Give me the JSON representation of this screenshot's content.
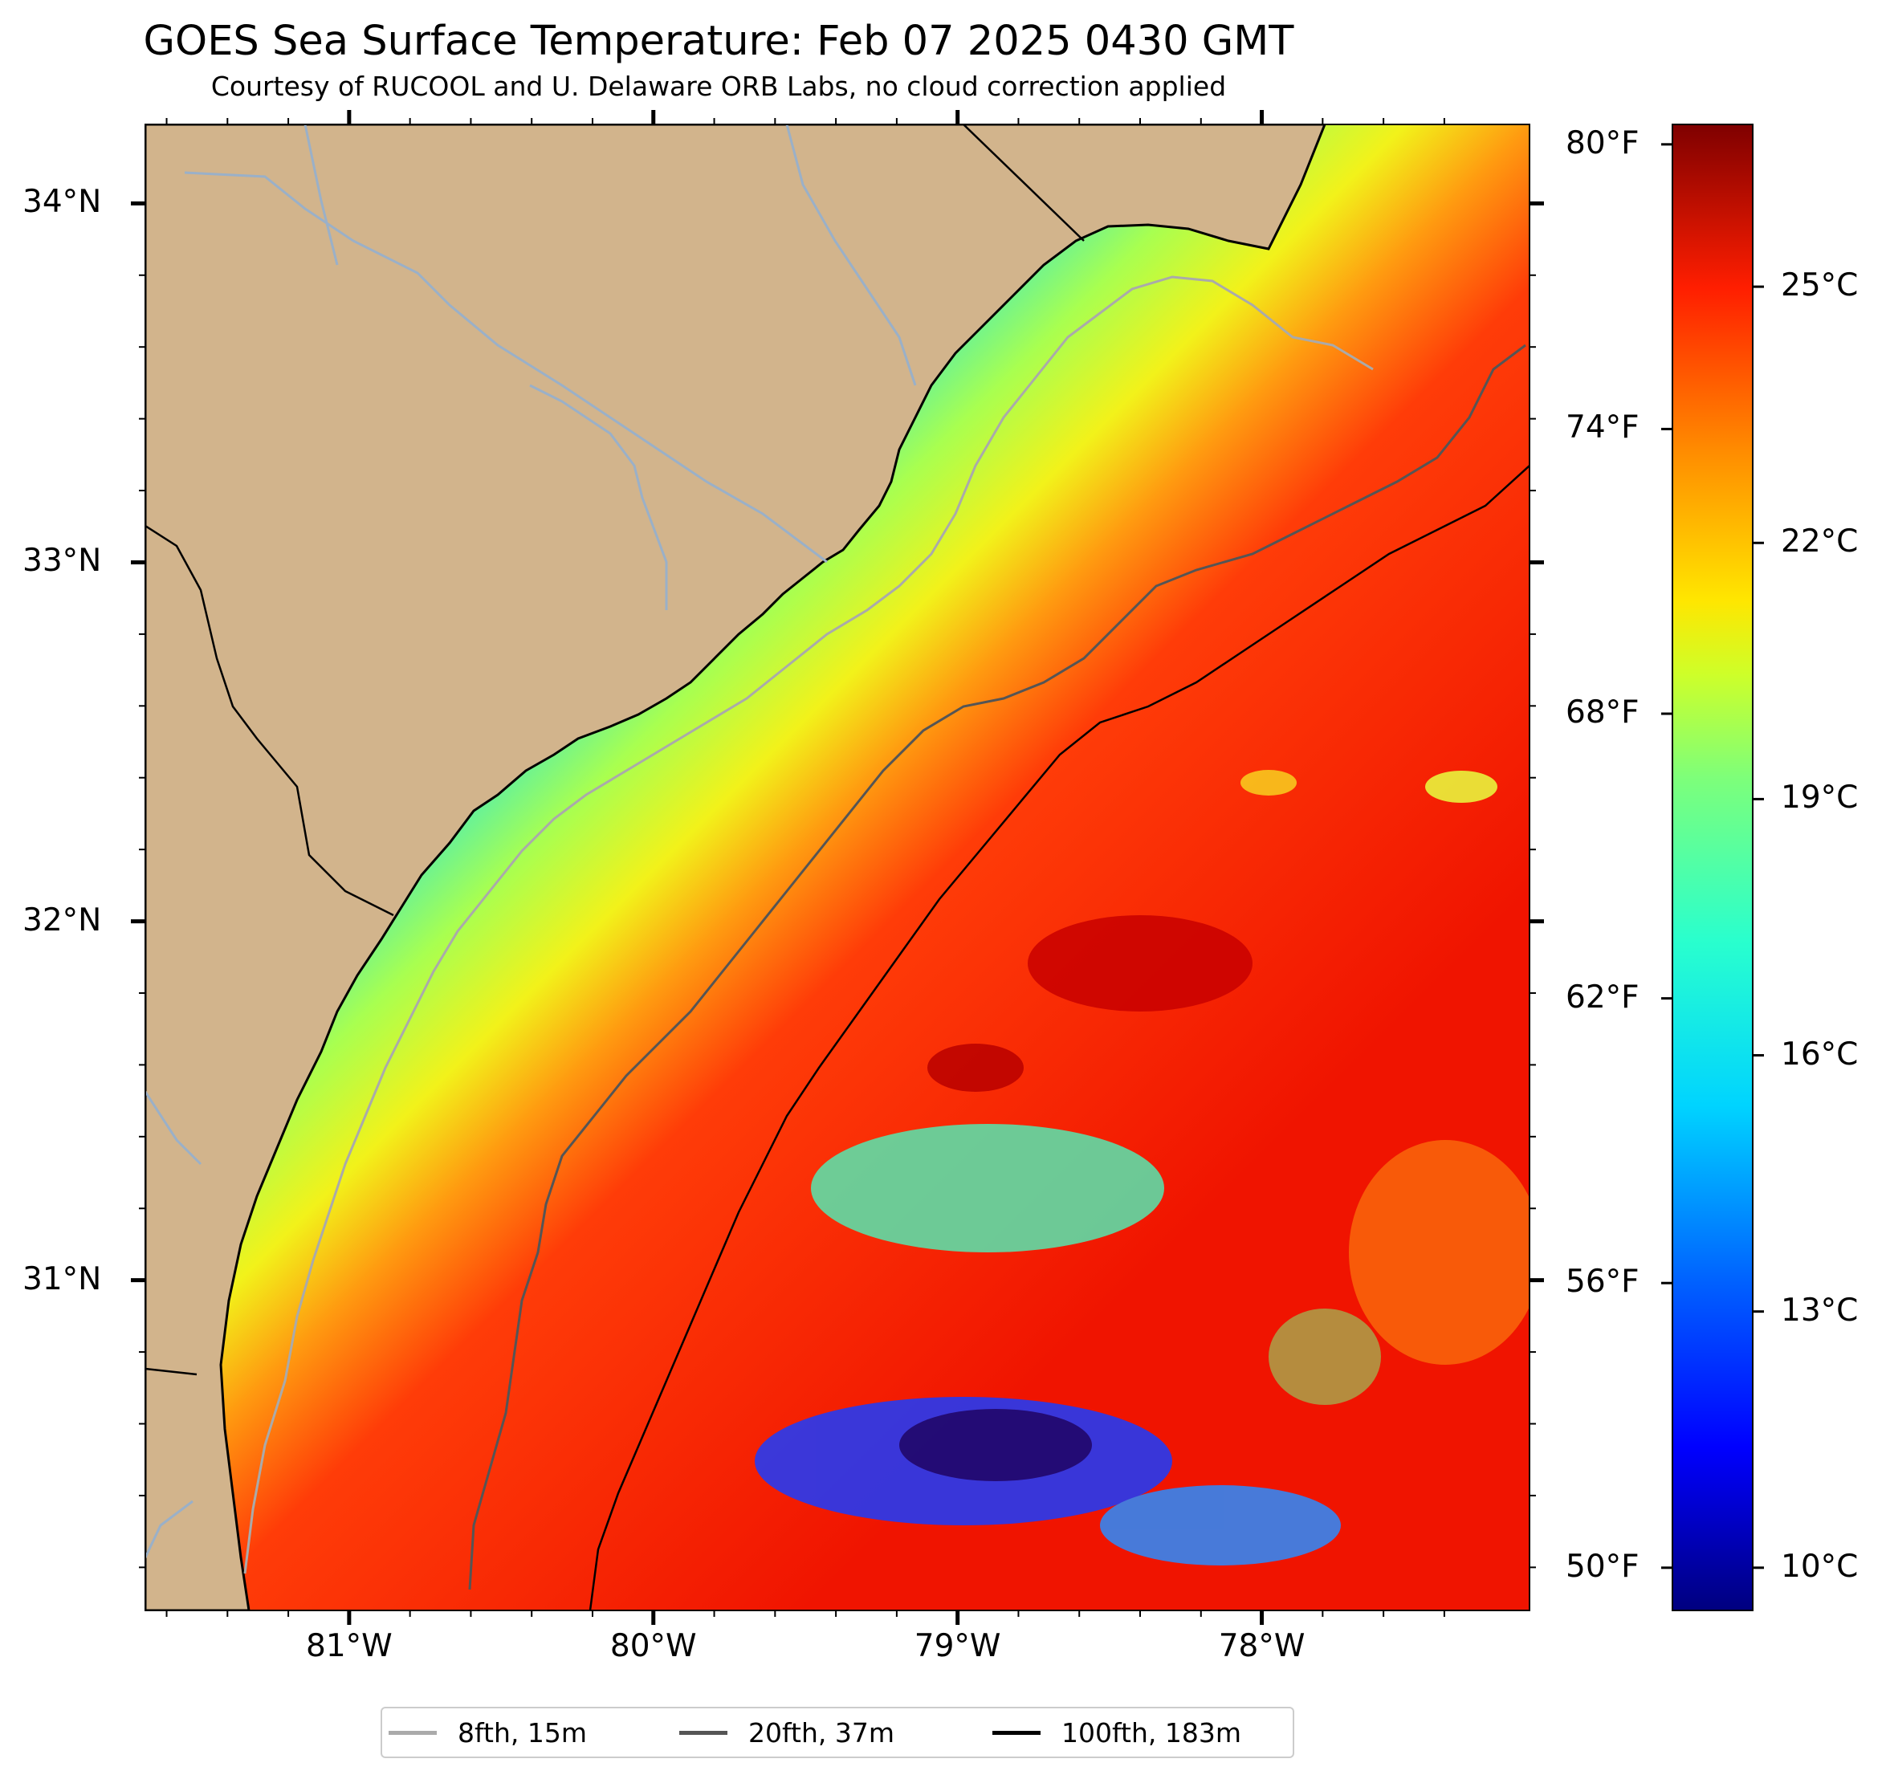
{
  "title": "GOES Sea Surface Temperature: Feb 07 2025 0430 GMT",
  "subtitle": "Courtesy of RUCOOL and U. Delaware ORB Labs, no cloud correction applied",
  "map": {
    "lat_range": [
      30.08,
      34.22
    ],
    "lon_range": [
      -81.67,
      -77.12
    ],
    "lat_ticks": [
      {
        "value": 34,
        "label": "34°N"
      },
      {
        "value": 33,
        "label": "33°N"
      },
      {
        "value": 32,
        "label": "32°N"
      },
      {
        "value": 31,
        "label": "31°N"
      }
    ],
    "lon_ticks": [
      {
        "value": -81,
        "label": "81°W"
      },
      {
        "value": -80,
        "label": "80°W"
      },
      {
        "value": -79,
        "label": "79°W"
      },
      {
        "value": -78,
        "label": "78°W"
      }
    ],
    "colors": {
      "land": "#d2b48c",
      "coastline": "#000000",
      "rivers": "#9ab0c8"
    }
  },
  "colorbar": {
    "colormap": "jet",
    "range_c": [
      9.5,
      26.9
    ],
    "fahrenheit_ticks": [
      {
        "value": 80,
        "label": "80°F"
      },
      {
        "value": 74,
        "label": "74°F"
      },
      {
        "value": 68,
        "label": "68°F"
      },
      {
        "value": 62,
        "label": "62°F"
      },
      {
        "value": 56,
        "label": "56°F"
      },
      {
        "value": 50,
        "label": "50°F"
      }
    ],
    "celsius_ticks": [
      {
        "value": 25,
        "label": "25°C"
      },
      {
        "value": 22,
        "label": "22°C"
      },
      {
        "value": 19,
        "label": "19°C"
      },
      {
        "value": 16,
        "label": "16°C"
      },
      {
        "value": 13,
        "label": "13°C"
      },
      {
        "value": 10,
        "label": "10°C"
      }
    ]
  },
  "legend": {
    "items": [
      {
        "label": "8fth, 15m",
        "color": "#aaaaaa"
      },
      {
        "label": "20fth, 37m",
        "color": "#555555"
      },
      {
        "label": "100fth, 183m",
        "color": "#000000"
      }
    ]
  }
}
